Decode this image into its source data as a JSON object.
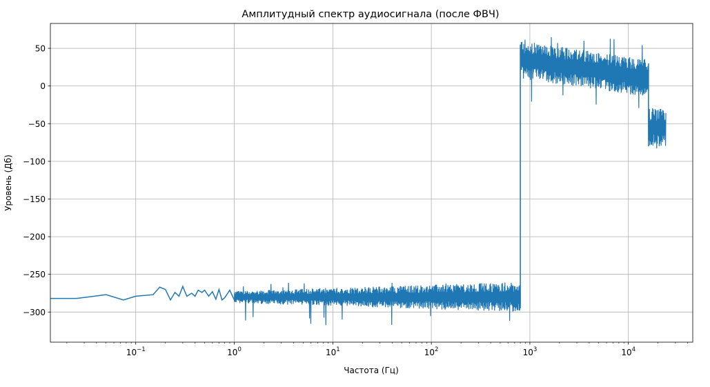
{
  "chart_data": {
    "type": "line",
    "title": "Амплитудный спектр аудиосигнала (после ФВЧ)",
    "xlabel": "Частота (Гц)",
    "ylabel": "Уровень (Дб)",
    "xscale": "log",
    "xlim": [
      0.0136,
      45000
    ],
    "ylim": [
      -340,
      83
    ],
    "grid": true,
    "line_color": "#1f77b4",
    "x_ticks": [
      {
        "label": "10",
        "exp": "−1",
        "value": 0.1
      },
      {
        "label": "10",
        "exp": "0",
        "value": 1
      },
      {
        "label": "10",
        "exp": "1",
        "value": 10
      },
      {
        "label": "10",
        "exp": "2",
        "value": 100
      },
      {
        "label": "10",
        "exp": "3",
        "value": 1000
      },
      {
        "label": "10",
        "exp": "4",
        "value": 10000
      }
    ],
    "y_ticks": [
      {
        "label": "50",
        "value": 50
      },
      {
        "label": "0",
        "value": 0
      },
      {
        "label": "−50",
        "value": -50
      },
      {
        "label": "−100",
        "value": -100
      },
      {
        "label": "−150",
        "value": -150
      },
      {
        "label": "−200",
        "value": -200
      },
      {
        "label": "−250",
        "value": -250
      },
      {
        "label": "−300",
        "value": -300
      }
    ],
    "series": [
      {
        "x": [
          0.0136,
          0.025,
          0.05,
          0.075,
          0.1,
          0.15,
          0.175,
          0.2,
          0.225,
          0.25,
          0.275,
          0.3,
          0.33,
          0.37,
          0.4,
          0.43,
          0.47,
          0.5,
          0.55,
          0.6,
          0.65,
          0.7,
          0.75,
          0.8,
          0.9,
          1.0
        ],
        "y": [
          -282,
          -282,
          -277,
          -284,
          -279,
          -277,
          -267,
          -270,
          -284,
          -274,
          -279,
          -266,
          -279,
          -275,
          -279,
          -271,
          -274,
          -271,
          -279,
          -273,
          -283,
          -270,
          -284,
          -281,
          -271,
          -284
        ]
      }
    ],
    "noise_band": {
      "segments": [
        {
          "x_start": 1.0,
          "x_end": 800,
          "center": -280,
          "amp_start": 8,
          "amp_end": 20,
          "spike_max": -260,
          "spike_min": -318
        },
        {
          "x_start": 800,
          "x_end": 16000,
          "center_start": 35,
          "center_end": 10,
          "amp": 25,
          "spike_max": 65,
          "spike_min": -30
        },
        {
          "x_start": 16000,
          "x_end": 24000,
          "center": -55,
          "amp": 25,
          "spike_max": -25,
          "spike_min": -98
        }
      ]
    }
  }
}
